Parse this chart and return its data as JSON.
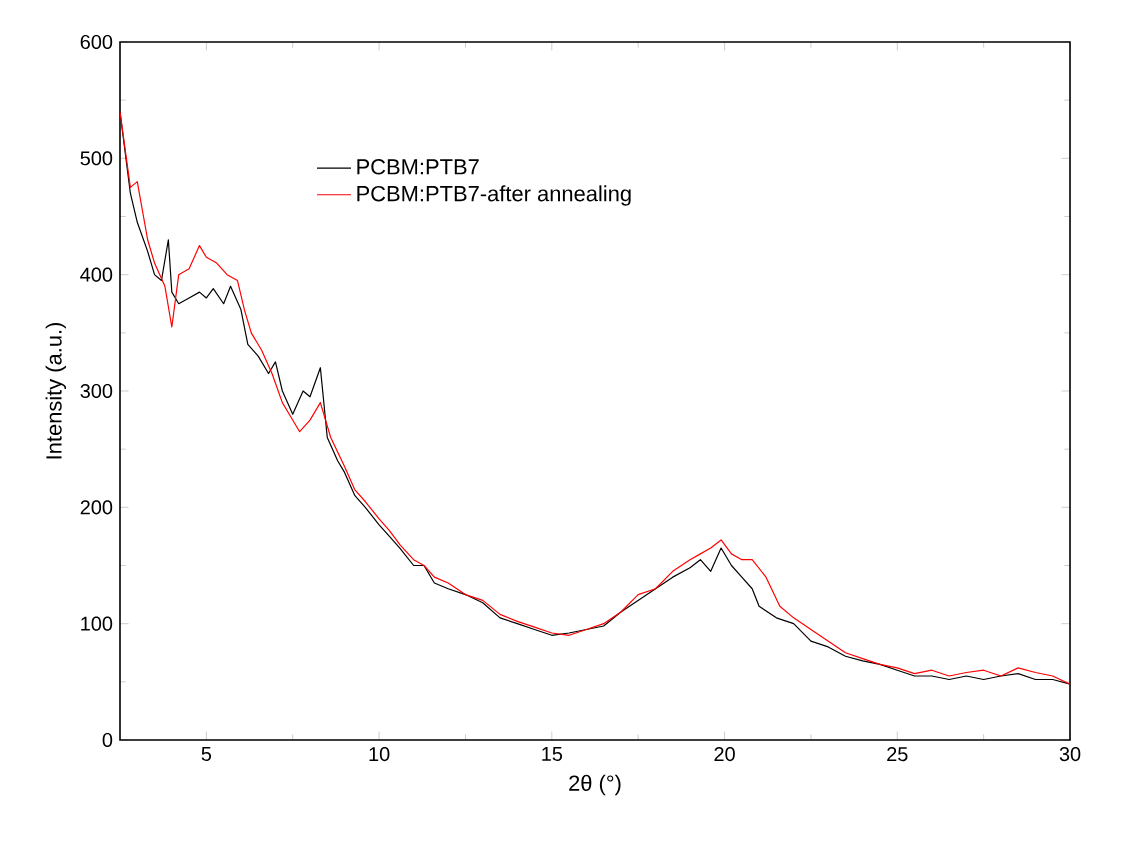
{
  "chart_data": {
    "type": "line",
    "xlabel": "2θ (°)",
    "ylabel": "Intensity (a.u.)",
    "xlim": [
      2.5,
      30
    ],
    "ylim": [
      0,
      600
    ],
    "xticks": [
      5,
      10,
      15,
      20,
      25,
      30
    ],
    "yticks": [
      0,
      100,
      200,
      300,
      400,
      500,
      600
    ],
    "grid": false,
    "legend": "top left",
    "marker": "none",
    "line_style": "solid",
    "series": [
      {
        "name": "PCBM:PTB7",
        "color": "#000000",
        "x": [
          2.5,
          2.8,
          3.0,
          3.3,
          3.5,
          3.7,
          3.9,
          4.0,
          4.2,
          4.5,
          4.8,
          5.0,
          5.2,
          5.5,
          5.7,
          6.0,
          6.2,
          6.5,
          6.8,
          7.0,
          7.2,
          7.5,
          7.8,
          8.0,
          8.3,
          8.5,
          8.8,
          9.0,
          9.3,
          9.6,
          10.0,
          10.3,
          10.6,
          11.0,
          11.3,
          11.6,
          12.0,
          12.5,
          13.0,
          13.5,
          14.0,
          14.5,
          15.0,
          15.5,
          16.0,
          16.5,
          17.0,
          17.5,
          18.0,
          18.5,
          19.0,
          19.3,
          19.6,
          19.9,
          20.2,
          20.5,
          20.8,
          21.0,
          21.5,
          22.0,
          22.5,
          23.0,
          23.5,
          24.0,
          24.5,
          25.0,
          25.5,
          26.0,
          26.5,
          27.0,
          27.5,
          28.0,
          28.5,
          29.0,
          29.5,
          30.0
        ],
        "values": [
          540,
          470,
          445,
          420,
          400,
          395,
          430,
          385,
          375,
          380,
          385,
          380,
          388,
          375,
          390,
          370,
          340,
          330,
          315,
          325,
          300,
          280,
          300,
          295,
          320,
          260,
          240,
          230,
          210,
          200,
          185,
          175,
          165,
          150,
          150,
          135,
          130,
          125,
          118,
          105,
          100,
          95,
          90,
          92,
          95,
          98,
          110,
          120,
          130,
          140,
          148,
          155,
          145,
          165,
          150,
          140,
          130,
          115,
          105,
          100,
          85,
          80,
          72,
          68,
          65,
          60,
          55,
          55,
          52,
          55,
          52,
          55,
          57,
          52,
          52,
          48
        ]
      },
      {
        "name": "PCBM:PTB7-after annealing",
        "color": "#ff0000",
        "x": [
          2.5,
          2.8,
          3.0,
          3.3,
          3.5,
          3.8,
          4.0,
          4.2,
          4.5,
          4.8,
          5.0,
          5.3,
          5.6,
          5.9,
          6.1,
          6.3,
          6.6,
          6.9,
          7.2,
          7.4,
          7.7,
          8.0,
          8.3,
          8.6,
          9.0,
          9.3,
          9.6,
          10.0,
          10.3,
          10.6,
          11.0,
          11.3,
          11.6,
          12.0,
          12.5,
          13.0,
          13.5,
          14.0,
          14.5,
          15.0,
          15.5,
          16.0,
          16.5,
          17.0,
          17.5,
          18.0,
          18.5,
          19.0,
          19.3,
          19.6,
          19.9,
          20.2,
          20.5,
          20.8,
          21.2,
          21.6,
          22.0,
          22.5,
          23.0,
          23.5,
          24.0,
          24.5,
          25.0,
          25.5,
          26.0,
          26.5,
          27.0,
          27.5,
          28.0,
          28.5,
          29.0,
          29.5,
          30.0
        ],
        "values": [
          540,
          475,
          480,
          430,
          410,
          390,
          355,
          400,
          405,
          425,
          415,
          410,
          400,
          395,
          370,
          350,
          335,
          315,
          290,
          280,
          265,
          275,
          290,
          260,
          235,
          215,
          205,
          190,
          180,
          168,
          155,
          150,
          140,
          135,
          125,
          120,
          108,
          102,
          97,
          92,
          90,
          95,
          100,
          110,
          125,
          130,
          145,
          155,
          160,
          165,
          172,
          160,
          155,
          155,
          140,
          115,
          105,
          95,
          85,
          75,
          70,
          65,
          62,
          57,
          60,
          55,
          58,
          60,
          55,
          62,
          58,
          55,
          48
        ]
      }
    ]
  }
}
